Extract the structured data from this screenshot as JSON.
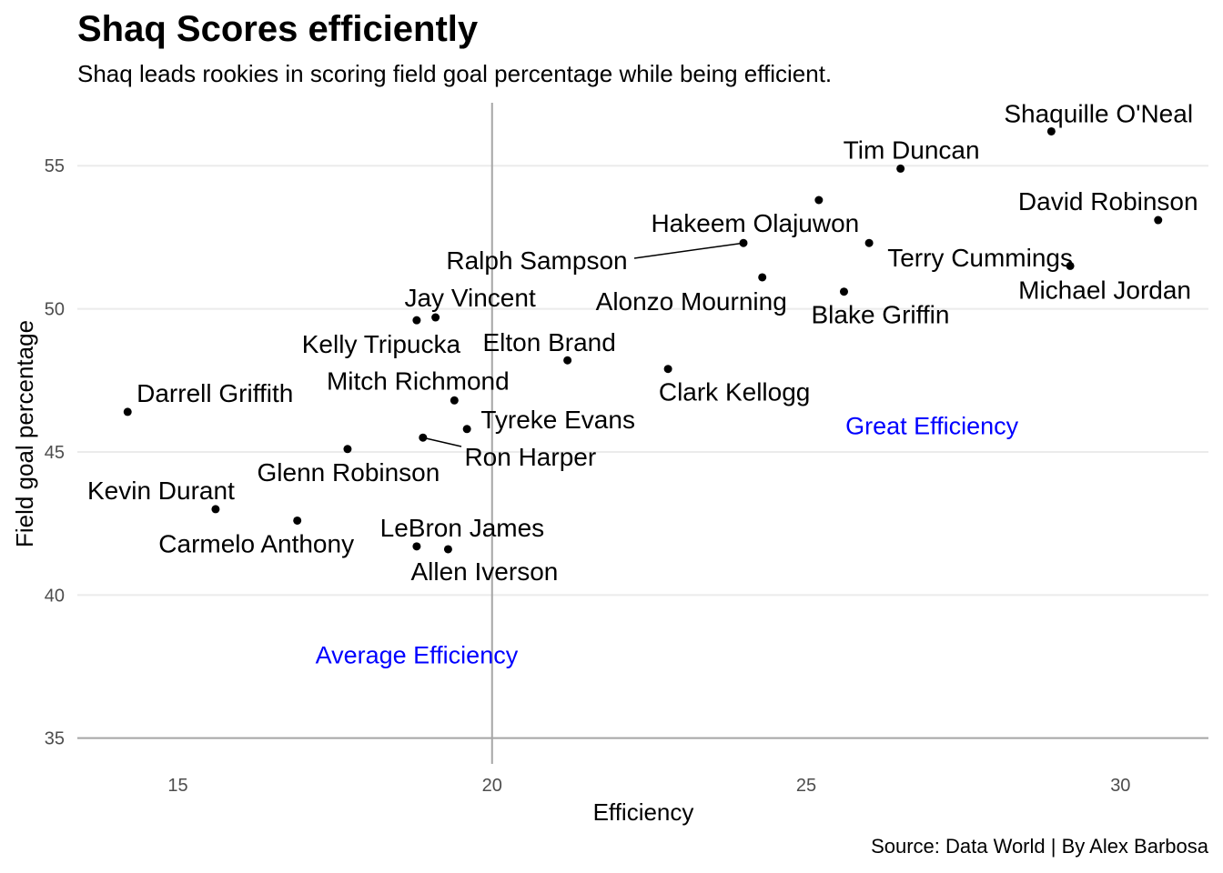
{
  "header": {
    "title": "Shaq Scores efficiently",
    "subtitle": "Shaq leads rookies in scoring  field goal percentage while being efficient.",
    "caption": "Source: Data World | By Alex Barbosa"
  },
  "chart_data": {
    "type": "scatter",
    "title": "Shaq Scores efficiently",
    "subtitle": "Shaq leads rookies in scoring  field goal percentage while being efficient.",
    "xlabel": "Efficiency",
    "ylabel": "Field goal percentage",
    "xlim": [
      13.4,
      31.4
    ],
    "ylim": [
      34.1,
      57.2
    ],
    "xticks": [
      15,
      20,
      25,
      30
    ],
    "yticks": [
      35,
      40,
      45,
      50,
      55
    ],
    "grid": "horizontal",
    "reference_lines": {
      "vertical_x": 20,
      "horizontal_y": 35
    },
    "point_color": "#000000",
    "annotation_color": "#0000ff",
    "points": [
      {
        "name": "Shaquille O'Neal",
        "x": 28.9,
        "y": 56.2
      },
      {
        "name": "Tim Duncan",
        "x": 26.5,
        "y": 54.9
      },
      {
        "name": "David Robinson",
        "x": 30.6,
        "y": 53.1
      },
      {
        "name": "Hakeem Olajuwon",
        "x": 25.2,
        "y": 53.8
      },
      {
        "name": "Terry Cummings",
        "x": 26.0,
        "y": 52.3
      },
      {
        "name": "Ralph Sampson",
        "x": 24.0,
        "y": 52.3
      },
      {
        "name": "Michael Jordan",
        "x": 29.2,
        "y": 51.5
      },
      {
        "name": "Alonzo Mourning",
        "x": 24.3,
        "y": 51.1
      },
      {
        "name": "Blake Griffin",
        "x": 25.6,
        "y": 50.6
      },
      {
        "name": "Jay Vincent",
        "x": 19.1,
        "y": 49.7
      },
      {
        "name": "Kelly Tripucka",
        "x": 18.8,
        "y": 49.6
      },
      {
        "name": "Elton Brand",
        "x": 21.2,
        "y": 48.2
      },
      {
        "name": "Clark Kellogg",
        "x": 22.8,
        "y": 47.9
      },
      {
        "name": "Mitch Richmond",
        "x": 19.4,
        "y": 46.8
      },
      {
        "name": "Darrell Griffith",
        "x": 14.2,
        "y": 46.4
      },
      {
        "name": "Tyreke Evans",
        "x": 19.6,
        "y": 45.8
      },
      {
        "name": "Ron Harper",
        "x": 18.9,
        "y": 45.5
      },
      {
        "name": "Glenn Robinson",
        "x": 17.7,
        "y": 45.1
      },
      {
        "name": "Kevin Durant",
        "x": 15.6,
        "y": 43.0
      },
      {
        "name": "Carmelo Anthony",
        "x": 16.9,
        "y": 42.6
      },
      {
        "name": "LeBron James",
        "x": 18.8,
        "y": 41.7
      },
      {
        "name": "Allen Iverson",
        "x": 19.3,
        "y": 41.6
      }
    ],
    "annotations": [
      {
        "text": "Great Efficiency",
        "x": 27.0,
        "y": 45.9
      },
      {
        "text": "Average Efficiency",
        "x": 18.8,
        "y": 37.9
      }
    ]
  }
}
